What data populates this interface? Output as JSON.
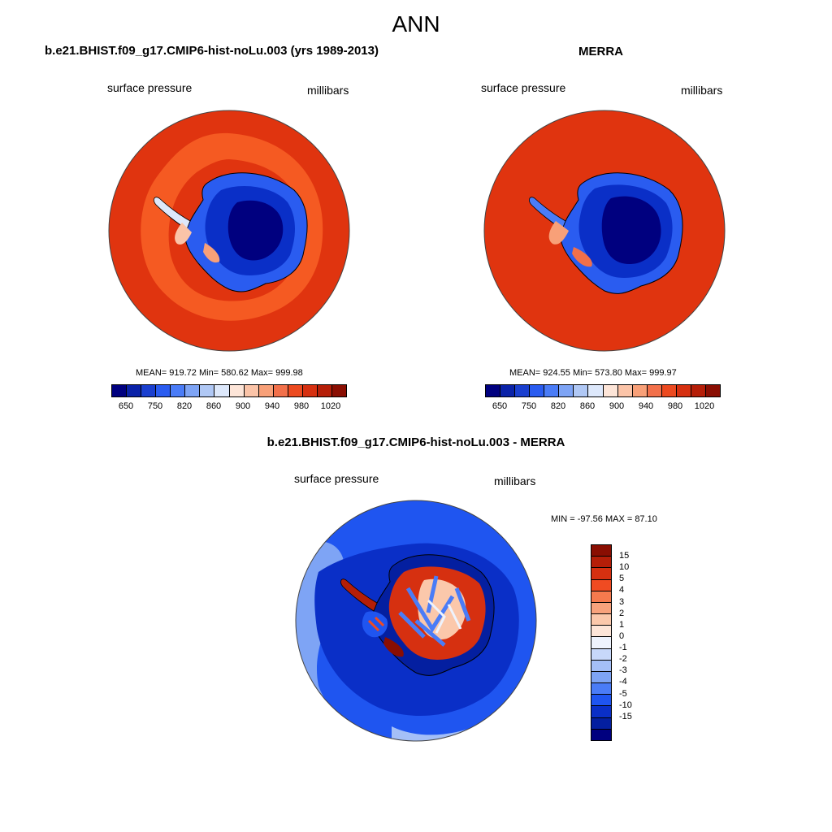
{
  "figure": {
    "title": "ANN"
  },
  "panels": {
    "model": {
      "title": "b.e21.BHIST.f09_g17.CMIP6-hist-noLu.003 (yrs 1989-2013)",
      "left_label": "surface pressure",
      "right_label": "millibars",
      "stats": "MEAN= 919.72  Min= 580.62  Max= 999.98"
    },
    "obs": {
      "title": "MERRA",
      "left_label": "surface pressure",
      "right_label": "millibars",
      "stats": "MEAN= 924.55  Min= 573.80  Max= 999.97"
    },
    "diff": {
      "title": "b.e21.BHIST.f09_g17.CMIP6-hist-noLu.003 - MERRA",
      "left_label": "surface pressure",
      "right_label": "millibars",
      "stats": "MIN = -97.56 MAX =  87.10"
    }
  },
  "colorbars": {
    "absolute": {
      "colors": [
        "#00007f",
        "#0a22a8",
        "#1a3fcf",
        "#2a5cf0",
        "#4a7cf7",
        "#7ea4f5",
        "#b0c8f5",
        "#dde8fb",
        "#fde5d8",
        "#fbc4a8",
        "#f8a078",
        "#f2704a",
        "#ec4a20",
        "#d63010",
        "#b51e08",
        "#8a0e02"
      ],
      "tick_labels": [
        "650",
        "750",
        "820",
        "860",
        "900",
        "940",
        "980",
        "1020"
      ]
    },
    "difference": {
      "colors": [
        "#8a0e02",
        "#b51e08",
        "#d63010",
        "#f04b22",
        "#f57a4e",
        "#f8a27c",
        "#fbc8ab",
        "#fde5d8",
        "#eef3fd",
        "#c7d8fa",
        "#a4bff7",
        "#7ea4f5",
        "#4a7cf7",
        "#1f55f0",
        "#0a2fc7",
        "#041fa0",
        "#00007f"
      ],
      "tick_labels": [
        "15",
        "10",
        "5",
        "4",
        "3",
        "2",
        "1",
        "0",
        "-1",
        "-2",
        "-3",
        "-4",
        "-5",
        "-10",
        "-15"
      ]
    }
  },
  "map_colors": {
    "ocean_high": "#e0340f",
    "ocean_band": "#f55a22",
    "ice_deep": "#00007f",
    "ice_mid": "#0a2fc7",
    "ice_edge": "#2a5cf0",
    "diff_ocean": "#1f55f0",
    "diff_ocean_dark": "#0a2fc7",
    "diff_ocean_light": "#7ea4f5"
  }
}
